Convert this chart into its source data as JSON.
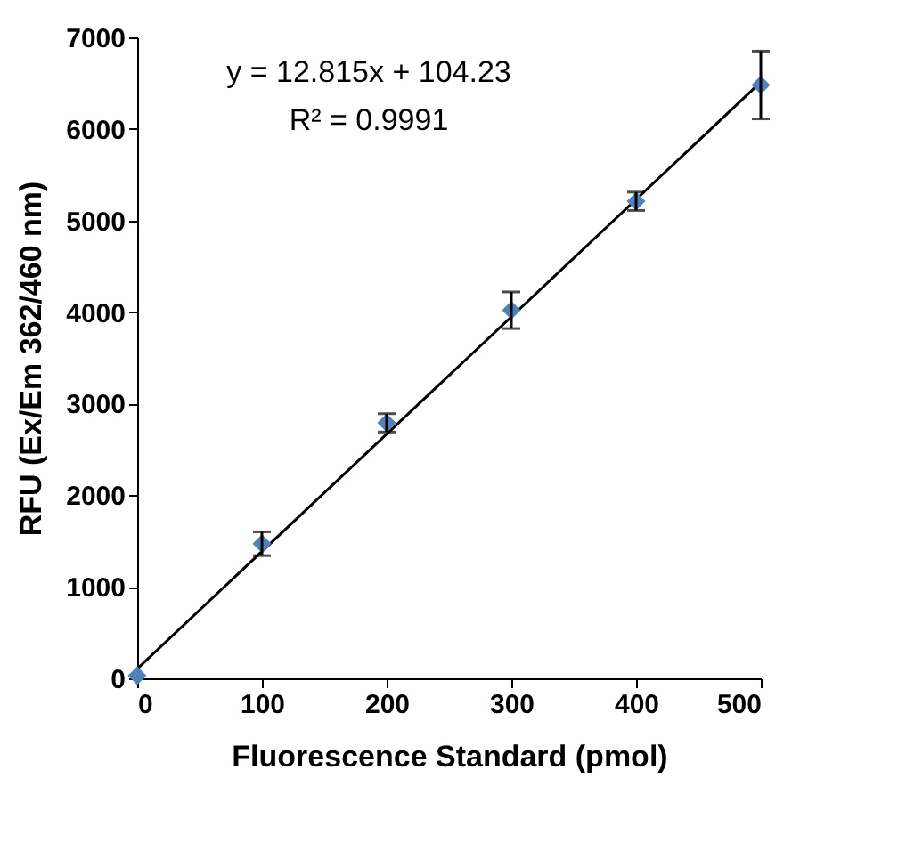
{
  "chart_data": {
    "type": "scatter",
    "xlabel": "Fluorescence  Standard (pmol)",
    "ylabel": "RFU (Ex/Em 362/460 nm)",
    "x": [
      0,
      100,
      200,
      300,
      400,
      500
    ],
    "series": [
      {
        "color": "#4f81bd",
        "values": [
          30,
          1470,
          2790,
          4020,
          5210,
          6480
        ],
        "errors": [
          null,
          130,
          100,
          200,
          100,
          370
        ]
      },
      {
        "type": "line",
        "marker": "none",
        "color": "#000000",
        "x": [
          0,
          500
        ],
        "values": [
          104,
          6512
        ]
      }
    ],
    "annotations": [
      "y = 12.815x + 104.23",
      "R² = 0.9991"
    ],
    "xlim": [
      0,
      500
    ],
    "xticks": [
      0,
      100,
      200,
      300,
      400,
      500
    ],
    "ylim": [
      0,
      7000
    ],
    "yticks": [
      0,
      1000,
      2000,
      3000,
      4000,
      5000,
      6000,
      7000
    ],
    "grid": false,
    "marker": "diamond",
    "line_style": "solid"
  }
}
